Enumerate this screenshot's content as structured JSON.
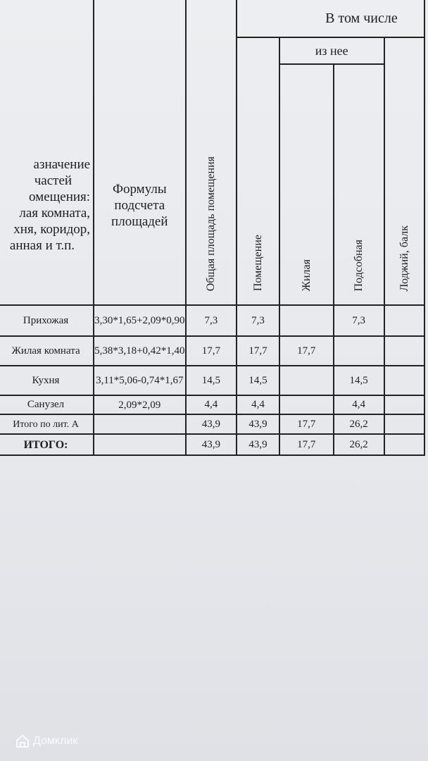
{
  "header": {
    "purpose_lines": [
      "азначение",
      "частей",
      "омещения:",
      "лая комната,",
      "хня, коридор,",
      "анная и т.п."
    ],
    "formula": [
      "Формулы",
      "подсчета",
      "площадей"
    ],
    "total_area": "Общая площадь помещения",
    "including": "В том числе",
    "premises": "Помещение",
    "of_which": "из нее",
    "living": "Жилая",
    "auxiliary": "Подсобная",
    "loggia": "Лоджий, балк"
  },
  "rows": [
    {
      "name": "Прихожая",
      "formula": "3,30*1,65+2,09*0,90",
      "total": "7,3",
      "premises": "7,3",
      "living": "",
      "auxiliary": "7,3"
    },
    {
      "name": "Жилая комната",
      "formula": "5,38*3,18+0,42*1,40",
      "total": "17,7",
      "premises": "17,7",
      "living": "17,7",
      "auxiliary": ""
    },
    {
      "name": "Кухня",
      "formula": "3,11*5,06-0,74*1,67",
      "total": "14,5",
      "premises": "14,5",
      "living": "",
      "auxiliary": "14,5"
    },
    {
      "name": "Санузел",
      "formula": "2,09*2,09",
      "total": "4,4",
      "premises": "4,4",
      "living": "",
      "auxiliary": "4,4"
    },
    {
      "name": "Итого по лит. А",
      "formula": "",
      "total": "43,9",
      "premises": "43,9",
      "living": "17,7",
      "auxiliary": "26,2"
    },
    {
      "name": "ИТОГО:",
      "formula": "",
      "total": "43,9",
      "premises": "43,9",
      "living": "17,7",
      "auxiliary": "26,2"
    }
  ],
  "watermark": "Домклик"
}
